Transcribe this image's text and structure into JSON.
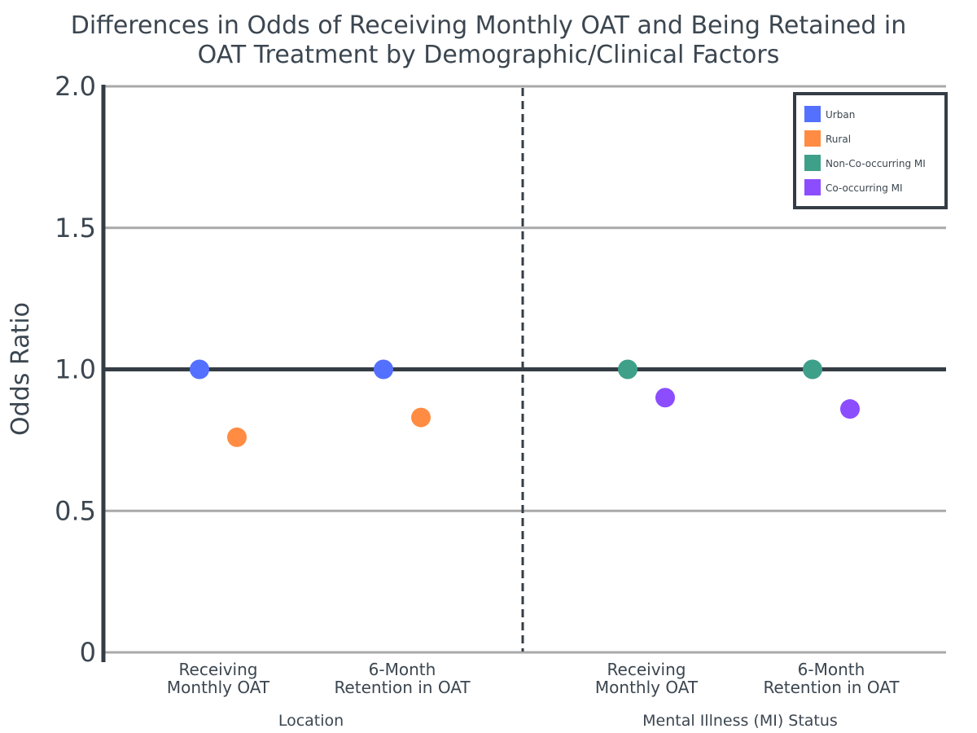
{
  "chart_data": {
    "type": "scatter",
    "title_lines": [
      "Differences in Odds of Receiving Monthly OAT and Being Retained in",
      "OAT Treatment by Demographic/Clinical Factors"
    ],
    "ylabel": "Odds Ratio",
    "ylim": [
      0,
      2.0
    ],
    "yticks": [
      {
        "value": 0,
        "label": "0"
      },
      {
        "value": 0.5,
        "label": "0.5"
      },
      {
        "value": 1.0,
        "label": "1.0"
      },
      {
        "value": 1.5,
        "label": "1.5"
      },
      {
        "value": 2.0,
        "label": "2.0"
      }
    ],
    "reference_line": 1.0,
    "grid": true,
    "legend_position": "top-right",
    "groups": [
      {
        "label": "Location",
        "categories": [
          {
            "label_lines": [
              "Receiving",
              "Monthly OAT"
            ]
          },
          {
            "label_lines": [
              "6-Month",
              "Retention in OAT"
            ]
          }
        ],
        "series": [
          {
            "name": "Urban",
            "color": "#5470ff",
            "values": [
              1.0,
              1.0
            ]
          },
          {
            "name": "Rural",
            "color": "#ff8c42",
            "values": [
              0.76,
              0.83
            ]
          }
        ]
      },
      {
        "label": "Mental Illness (MI) Status",
        "categories": [
          {
            "label_lines": [
              "Receiving",
              "Monthly OAT"
            ]
          },
          {
            "label_lines": [
              "6-Month",
              "Retention in OAT"
            ]
          }
        ],
        "series": [
          {
            "name": "Non-Co-occurring MI",
            "color": "#3fa08a",
            "values": [
              1.0,
              1.0
            ]
          },
          {
            "name": "Co-occurring MI",
            "color": "#8c4dff",
            "values": [
              0.9,
              0.86
            ]
          }
        ]
      }
    ]
  }
}
